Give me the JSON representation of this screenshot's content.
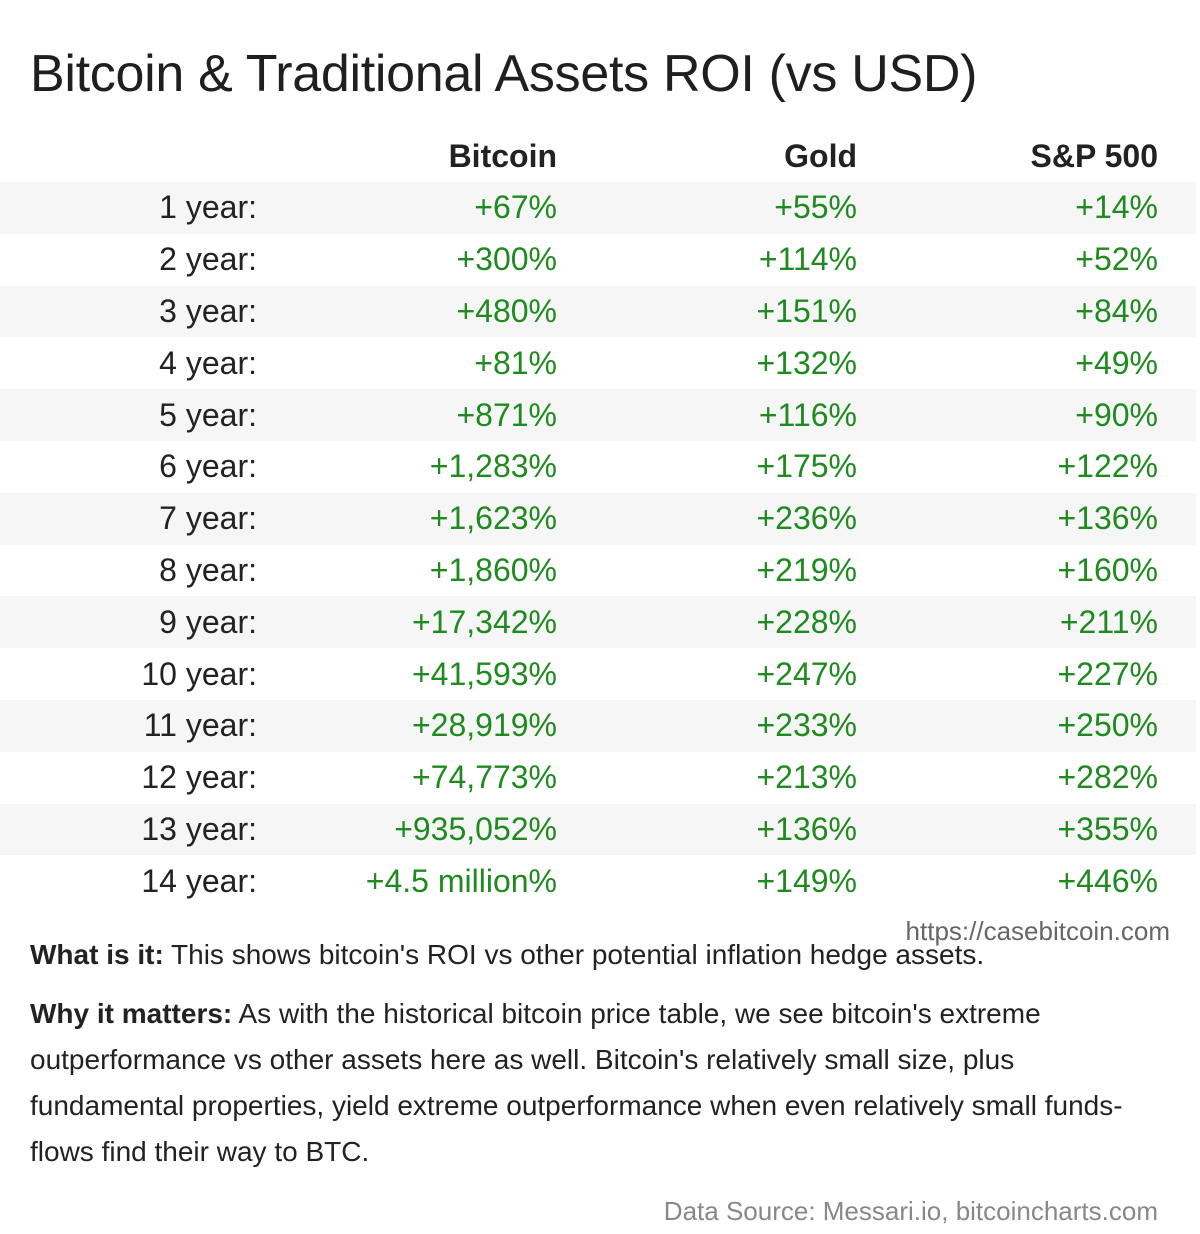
{
  "title": "Bitcoin & Traditional Assets ROI (vs USD)",
  "chart_data": {
    "type": "table",
    "title": "Bitcoin & Traditional Assets ROI (vs USD)",
    "columns": [
      "",
      "Bitcoin",
      "Gold",
      "S&P 500"
    ],
    "rows": [
      [
        "1 year:",
        "+67%",
        "+55%",
        "+14%"
      ],
      [
        "2 year:",
        "+300%",
        "+114%",
        "+52%"
      ],
      [
        "3 year:",
        "+480%",
        "+151%",
        "+84%"
      ],
      [
        "4 year:",
        "+81%",
        "+132%",
        "+49%"
      ],
      [
        "5 year:",
        "+871%",
        "+116%",
        "+90%"
      ],
      [
        "6 year:",
        "+1,283%",
        "+175%",
        "+122%"
      ],
      [
        "7 year:",
        "+1,623%",
        "+236%",
        "+136%"
      ],
      [
        "8 year:",
        "+1,860%",
        "+219%",
        "+160%"
      ],
      [
        "9 year:",
        "+17,342%",
        "+228%",
        "+211%"
      ],
      [
        "10 year:",
        "+41,593%",
        "+247%",
        "+227%"
      ],
      [
        "11 year:",
        "+28,919%",
        "+233%",
        "+250%"
      ],
      [
        "12 year:",
        "+74,773%",
        "+213%",
        "+282%"
      ],
      [
        "13 year:",
        "+935,052%",
        "+136%",
        "+355%"
      ],
      [
        "14 year:",
        "+4.5 million%",
        "+149%",
        "+446%"
      ]
    ],
    "value_color": "#1f8a1f",
    "stripe_color": "#f6f6f6"
  },
  "source_url": "https://casebitcoin.com",
  "what_is_it": {
    "label": "What is it:",
    "text": " This shows bitcoin's ROI vs other potential inflation hedge assets."
  },
  "why_it_matters": {
    "label": "Why it matters:",
    "text": " As with the historical bitcoin price table, we see bitcoin's extreme outperformance vs other assets here as well. Bitcoin's relatively small size, plus fundamental properties, yield extreme outperformance when even relatively small funds-flows find their way to BTC."
  },
  "data_source": "Data Source: Messari.io, bitcoincharts.com"
}
